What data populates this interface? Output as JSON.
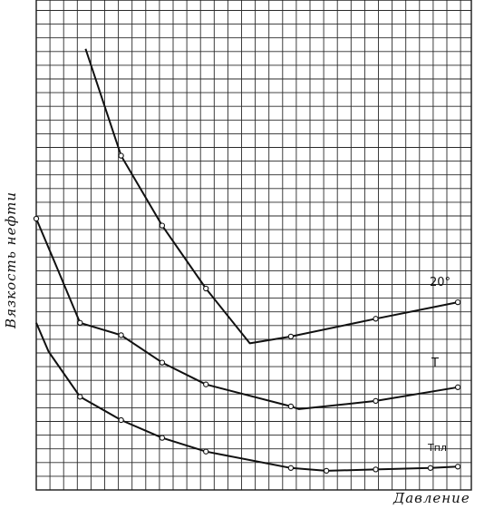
{
  "chart_data": {
    "type": "line",
    "title": "",
    "xlabel": "Давление",
    "ylabel": "Вязкость нефти",
    "ylim_note": "no numeric scale printed",
    "xlim": [
      0,
      30
    ],
    "ylim": [
      0,
      32
    ],
    "grid": true,
    "series": [
      {
        "name": "20°",
        "label_display": "20°",
        "points": [
          [
            3.6,
            32.2
          ],
          [
            6.2,
            24.4
          ],
          [
            9.2,
            19.3
          ],
          [
            12.4,
            14.7
          ],
          [
            15.6,
            10.7
          ],
          [
            18.6,
            11.2
          ],
          [
            24.8,
            12.5
          ],
          [
            30.8,
            13.7
          ]
        ],
        "markers": [
          [
            6.2,
            24.4
          ],
          [
            9.2,
            19.3
          ],
          [
            12.4,
            14.7
          ],
          [
            18.6,
            11.2
          ],
          [
            24.8,
            12.5
          ],
          [
            30.8,
            13.7
          ]
        ]
      },
      {
        "name": "T",
        "label_display": "T",
        "points": [
          [
            0,
            19.8
          ],
          [
            1.4,
            16.5
          ],
          [
            3.2,
            12.2
          ],
          [
            6.2,
            11.3
          ],
          [
            9.2,
            9.3
          ],
          [
            12.4,
            7.7
          ],
          [
            18.6,
            6.1
          ],
          [
            19.2,
            5.9
          ],
          [
            24.8,
            6.5
          ],
          [
            30.8,
            7.5
          ]
        ],
        "markers": [
          [
            0,
            19.8
          ],
          [
            3.2,
            12.2
          ],
          [
            6.2,
            11.3
          ],
          [
            9.2,
            9.3
          ],
          [
            12.4,
            7.7
          ],
          [
            18.6,
            6.1
          ],
          [
            24.8,
            6.5
          ],
          [
            30.8,
            7.5
          ]
        ]
      },
      {
        "name": "Tпл",
        "label_display": "Тпл",
        "points": [
          [
            0,
            12.2
          ],
          [
            0.9,
            10.1
          ],
          [
            3.2,
            6.8
          ],
          [
            6.2,
            5.1
          ],
          [
            9.2,
            3.8
          ],
          [
            12.4,
            2.8
          ],
          [
            18.6,
            1.6
          ],
          [
            21.2,
            1.4
          ],
          [
            24.8,
            1.5
          ],
          [
            28.8,
            1.6
          ],
          [
            30.8,
            1.7
          ]
        ],
        "markers": [
          [
            3.2,
            6.8
          ],
          [
            6.2,
            5.1
          ],
          [
            9.2,
            3.8
          ],
          [
            12.4,
            2.8
          ],
          [
            18.6,
            1.6
          ],
          [
            21.2,
            1.4
          ],
          [
            24.8,
            1.5
          ],
          [
            28.8,
            1.6
          ],
          [
            30.8,
            1.7
          ]
        ]
      }
    ]
  },
  "labels": {
    "ylabel": "Вязкость нефти",
    "xlabel": "Давление",
    "series_20": "20°",
    "series_T": "T",
    "series_Tpl": "Тпл"
  }
}
